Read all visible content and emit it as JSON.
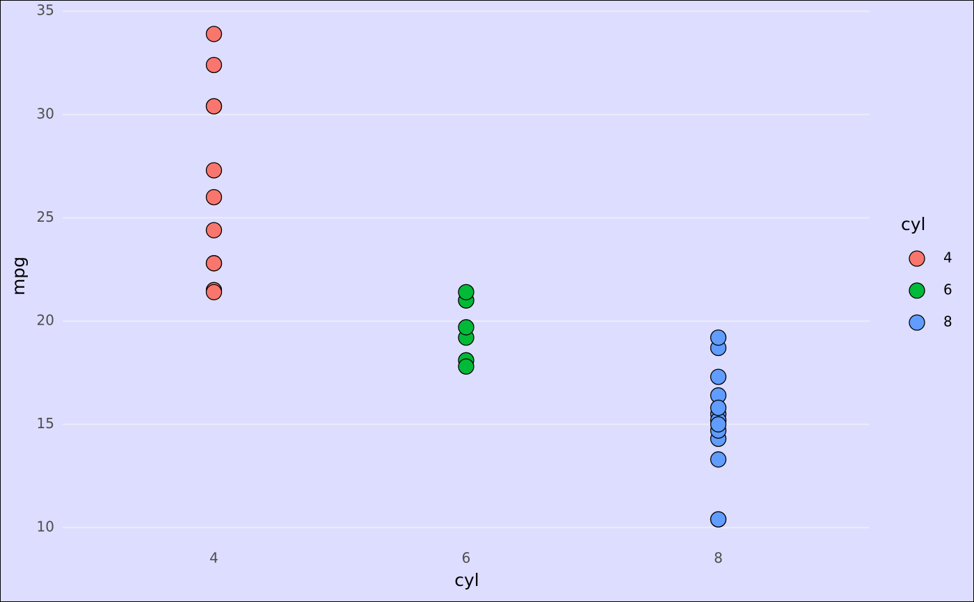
{
  "chart_data": {
    "type": "scatter",
    "x_label": "cyl",
    "y_label": "mpg",
    "legend_title": "cyl",
    "categories": [
      "4",
      "6",
      "8"
    ],
    "series": [
      {
        "name": "4",
        "color": "#F8766D",
        "values": [
          22.8,
          24.4,
          22.8,
          32.4,
          30.4,
          33.9,
          21.5,
          27.3,
          26.0,
          30.4,
          21.4
        ]
      },
      {
        "name": "6",
        "color": "#00BA38",
        "values": [
          21.0,
          21.0,
          21.4,
          18.1,
          19.2,
          17.8,
          19.7
        ]
      },
      {
        "name": "8",
        "color": "#619CFF",
        "values": [
          18.7,
          14.3,
          16.4,
          17.3,
          15.2,
          10.4,
          10.4,
          14.7,
          15.5,
          15.2,
          13.3,
          19.2,
          15.8,
          15.0
        ]
      }
    ],
    "ylim": [
      9.225,
      35.075
    ],
    "yticks": [
      10,
      15,
      20,
      25,
      30,
      35
    ],
    "grid": true,
    "legend": "right"
  }
}
